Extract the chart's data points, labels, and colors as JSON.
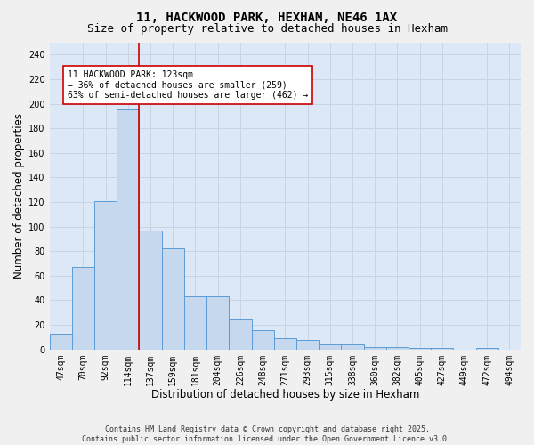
{
  "title": "11, HACKWOOD PARK, HEXHAM, NE46 1AX",
  "subtitle": "Size of property relative to detached houses in Hexham",
  "xlabel": "Distribution of detached houses by size in Hexham",
  "ylabel": "Number of detached properties",
  "categories": [
    "47sqm",
    "70sqm",
    "92sqm",
    "114sqm",
    "137sqm",
    "159sqm",
    "181sqm",
    "204sqm",
    "226sqm",
    "248sqm",
    "271sqm",
    "293sqm",
    "315sqm",
    "338sqm",
    "360sqm",
    "382sqm",
    "405sqm",
    "427sqm",
    "449sqm",
    "472sqm",
    "494sqm"
  ],
  "bar_heights": [
    13,
    67,
    121,
    195,
    97,
    82,
    43,
    43,
    25,
    16,
    9,
    8,
    4,
    4,
    2,
    2,
    1,
    1,
    0,
    1,
    0
  ],
  "bar_color": "#c5d8ee",
  "bar_edge_color": "#5b9bd5",
  "vline_x": 3.5,
  "vline_color": "#cc0000",
  "annotation_text": "11 HACKWOOD PARK: 123sqm\n← 36% of detached houses are smaller (259)\n63% of semi-detached houses are larger (462) →",
  "annotation_box_color": "#ffffff",
  "annotation_box_edge": "#cc0000",
  "ylim": [
    0,
    250
  ],
  "yticks": [
    0,
    20,
    40,
    60,
    80,
    100,
    120,
    140,
    160,
    180,
    200,
    220,
    240
  ],
  "grid_color": "#c8d4e4",
  "bg_color": "#dce8f5",
  "fig_bg_color": "#f0f0f0",
  "footer": "Contains HM Land Registry data © Crown copyright and database right 2025.\nContains public sector information licensed under the Open Government Licence v3.0.",
  "title_fontsize": 10,
  "subtitle_fontsize": 9,
  "tick_fontsize": 7,
  "xlabel_fontsize": 8.5,
  "ylabel_fontsize": 8.5,
  "annotation_fontsize": 7,
  "footer_fontsize": 6
}
